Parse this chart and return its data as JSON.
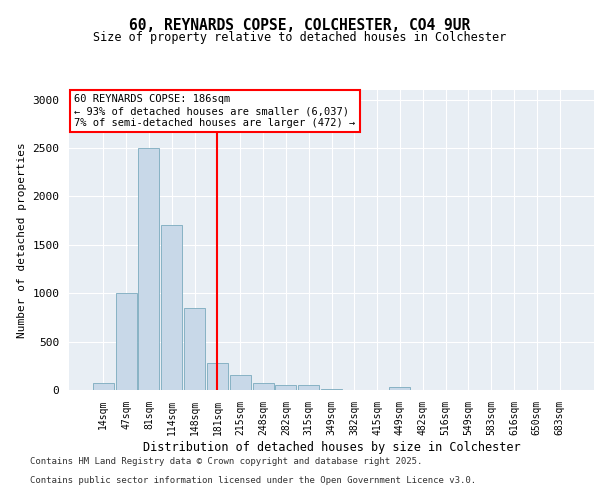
{
  "title1": "60, REYNARDS COPSE, COLCHESTER, CO4 9UR",
  "title2": "Size of property relative to detached houses in Colchester",
  "xlabel": "Distribution of detached houses by size in Colchester",
  "ylabel": "Number of detached properties",
  "categories": [
    "14sqm",
    "47sqm",
    "81sqm",
    "114sqm",
    "148sqm",
    "181sqm",
    "215sqm",
    "248sqm",
    "282sqm",
    "315sqm",
    "349sqm",
    "382sqm",
    "415sqm",
    "449sqm",
    "482sqm",
    "516sqm",
    "549sqm",
    "583sqm",
    "616sqm",
    "650sqm",
    "683sqm"
  ],
  "values": [
    75,
    1000,
    2500,
    1700,
    850,
    275,
    150,
    75,
    50,
    50,
    10,
    0,
    0,
    30,
    0,
    0,
    0,
    0,
    0,
    0,
    0
  ],
  "bar_color": "#c8d8e8",
  "bar_edge_color": "#7aaabe",
  "vline_x": 5,
  "vline_color": "red",
  "annotation_title": "60 REYNARDS COPSE: 186sqm",
  "annotation_line1": "← 93% of detached houses are smaller (6,037)",
  "annotation_line2": "7% of semi-detached houses are larger (472) →",
  "ylim": [
    0,
    3100
  ],
  "yticks": [
    0,
    500,
    1000,
    1500,
    2000,
    2500,
    3000
  ],
  "background_color": "#e8eef4",
  "footer1": "Contains HM Land Registry data © Crown copyright and database right 2025.",
  "footer2": "Contains public sector information licensed under the Open Government Licence v3.0."
}
